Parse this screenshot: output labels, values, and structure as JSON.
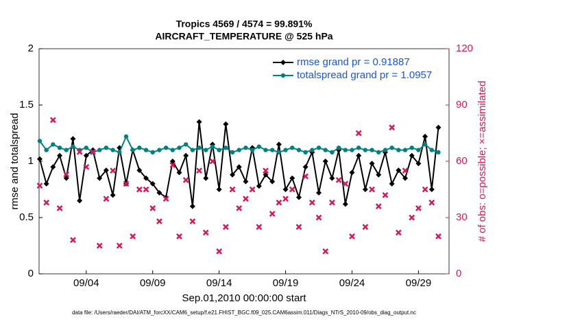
{
  "chart_data": {
    "type": "line",
    "title": "Tropics 4569 / 4574 = 99.891%",
    "subtitle": "AIRCRAFT_TEMPERATURE @ 525 hPa",
    "xlabel": "Sep.01,2010 00:00:00 start",
    "ylabel": "rmse and totalspread",
    "y2label": "# of obs: o=possible; ×=assimilated",
    "footnote": "data file: /Users/raeder/DAI/ATM_forcXX/CAM6_setup/f.e21.FHIST_BGC.f09_025.CAM6assim.011/Diags_NTrS_2010-09/obs_diag_output.nc",
    "xlim": [
      0.45,
      31.3
    ],
    "xticks": [
      {
        "value": 4,
        "label": "09/04"
      },
      {
        "value": 9,
        "label": "09/09"
      },
      {
        "value": 14,
        "label": "09/14"
      },
      {
        "value": 19,
        "label": "09/19"
      },
      {
        "value": 24,
        "label": "09/24"
      },
      {
        "value": 29,
        "label": "09/29"
      }
    ],
    "ylim": [
      0,
      2
    ],
    "yticks": [
      0,
      0.5,
      1,
      1.5,
      2
    ],
    "y2lim": [
      0,
      120
    ],
    "y2ticks": [
      0,
      30,
      60,
      90,
      120
    ],
    "grid": false,
    "legend": "upper right",
    "x": [
      0.5,
      1,
      1.5,
      2,
      2.5,
      3,
      3.5,
      4,
      4.5,
      5,
      5.5,
      6,
      6.5,
      7,
      7.5,
      8,
      8.5,
      9,
      9.5,
      10,
      10.5,
      11,
      11.5,
      12,
      12.5,
      13,
      13.5,
      14,
      14.5,
      15,
      15.5,
      16,
      16.5,
      17,
      17.5,
      18,
      18.5,
      19,
      19.5,
      20,
      20.5,
      21,
      21.5,
      22,
      22.5,
      23,
      23.5,
      24,
      24.5,
      25,
      25.5,
      26,
      26.5,
      27,
      27.5,
      28,
      28.5,
      29,
      29.5,
      30,
      30.5
    ],
    "series": [
      {
        "name": "rmse grand pr = 0.91887",
        "color": "#000000",
        "marker": "diamond",
        "values": [
          1.02,
          0.8,
          0.95,
          1.05,
          0.85,
          1.2,
          0.65,
          1.05,
          1.1,
          0.85,
          0.92,
          0.7,
          1.12,
          0.8,
          1.1,
          0.92,
          0.85,
          0.8,
          0.72,
          0.68,
          1.0,
          0.9,
          1.05,
          0.6,
          1.35,
          0.85,
          1.15,
          0.75,
          1.33,
          0.88,
          0.95,
          0.82,
          1.12,
          0.78,
          0.88,
          0.82,
          1.15,
          0.75,
          0.85,
          0.68,
          0.95,
          1.08,
          0.72,
          1.0,
          0.85,
          1.1,
          0.62,
          0.9,
          1.05,
          0.75,
          0.98,
          0.88,
          1.08,
          0.8,
          0.92,
          0.85,
          1.05,
          0.98,
          1.22,
          0.75,
          1.3
        ]
      },
      {
        "name": "totalspread grand pr = 1.0957",
        "color": "#008080",
        "marker": "circle",
        "values": [
          1.18,
          1.1,
          1.15,
          1.12,
          1.1,
          1.13,
          1.1,
          1.12,
          1.08,
          1.1,
          1.12,
          1.1,
          1.08,
          1.22,
          1.1,
          1.12,
          1.1,
          1.08,
          1.1,
          1.12,
          1.1,
          1.12,
          1.15,
          1.1,
          1.12,
          1.1,
          1.13,
          1.1,
          1.12,
          1.08,
          1.1,
          1.12,
          1.1,
          1.13,
          1.1,
          1.1,
          1.08,
          1.1,
          1.12,
          1.1,
          1.08,
          1.1,
          1.12,
          1.1,
          1.08,
          1.12,
          1.1,
          1.1,
          1.12,
          1.1,
          1.1,
          1.08,
          1.1,
          1.12,
          1.1,
          1.1,
          1.12,
          1.1,
          1.15,
          1.1,
          1.08
        ]
      },
      {
        "color": "#d6185b",
        "axis": "y2",
        "marker": "cross",
        "values": [
          47,
          38,
          82,
          35,
          53,
          18,
          65,
          57,
          65,
          15,
          40,
          55,
          15,
          48,
          20,
          45,
          45,
          35,
          28,
          40,
          58,
          20,
          50,
          28,
          55,
          22,
          60,
          12,
          25,
          45,
          35,
          40,
          45,
          25,
          55,
          32,
          38,
          40,
          45,
          25,
          52,
          38,
          30,
          12,
          38,
          50,
          48,
          20,
          75,
          25,
          45,
          36,
          42,
          78,
          22,
          55,
          30,
          35,
          45,
          38,
          20
        ]
      }
    ]
  }
}
